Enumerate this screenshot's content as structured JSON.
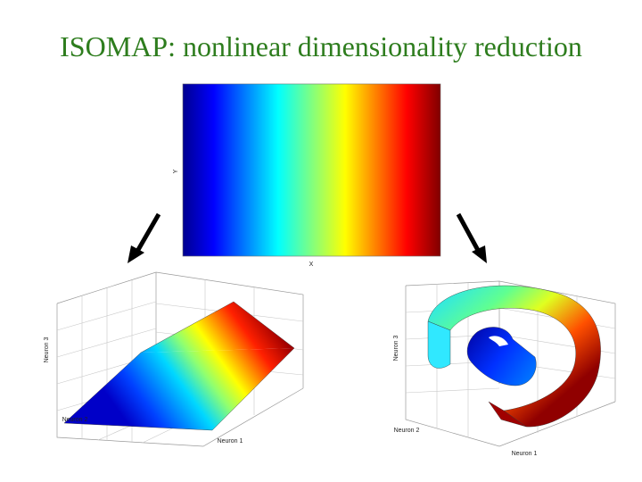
{
  "title": "ISOMAP: nonlinear dimensionality reduction",
  "top_panel": {
    "xlabel": "X",
    "ylabel": "Y",
    "colormap": "jet"
  },
  "left_panel": {
    "xlabel": "Neuron 1",
    "ylabel": "Neuron 2",
    "zlabel": "Neuron 3",
    "surface": "plane"
  },
  "right_panel": {
    "xlabel": "Neuron 1",
    "ylabel": "Neuron 2",
    "zlabel": "Neuron 3",
    "surface": "swiss-roll"
  },
  "arrow_color": "#000000",
  "title_color": "#2e7d1e"
}
